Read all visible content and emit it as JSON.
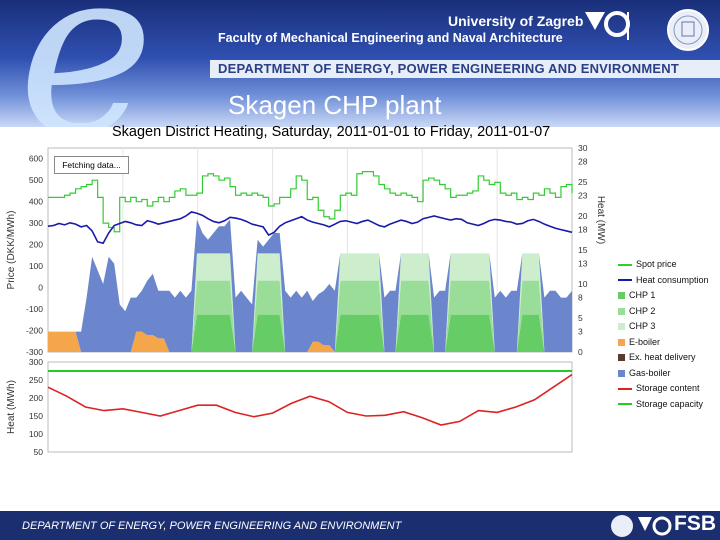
{
  "header": {
    "university": "University of Zagreb",
    "faculty": "Faculty of Mechanical Engineering and Naval Architecture",
    "department": "DEPARTMENT OF ENERGY, POWER ENGINEERING AND ENVIRONMENT",
    "slide_title": "Skagen CHP plant"
  },
  "footer": {
    "department": "DEPARTMENT OF ENERGY, POWER ENGINEERING AND ENVIRONMENT",
    "logo_text": "FSB"
  },
  "status": {
    "fetching": "Fetching data..."
  },
  "colors": {
    "spot_price": "#33cc33",
    "heat_consumption": "#1a1aaa",
    "chp1": "#66cc66",
    "chp2": "#99dd99",
    "chp3": "#cceecc",
    "eboiler": "#f5a64a",
    "ext_heat": "#5a3a2a",
    "gas_boiler": "#6b86cc",
    "storage_content": "#dd2222",
    "storage_capacity": "#22cc22",
    "header_dark": "#1a2f7a",
    "footer": "#1b2f70"
  },
  "chart_data": [
    {
      "type": "area",
      "title": "Skagen District Heating, Saturday, 2011-01-01 to Friday, 2011-01-07",
      "ylabel_left": "Price (DKK/MWh)",
      "ylabel_right": "Heat (MW)",
      "left_ticks": [
        "600",
        "500",
        "400",
        "300",
        "200",
        "100",
        "0",
        "-100",
        "-200",
        "-300"
      ],
      "right_ticks": [
        "30",
        "28",
        "25",
        "23",
        "20",
        "18",
        "15",
        "13",
        "10",
        "8",
        "5",
        "3",
        "0"
      ],
      "ylim_left": [
        -300,
        650
      ],
      "ylim_right": [
        0,
        30
      ],
      "x_days": 7,
      "x_step_hours": 2,
      "legend": [
        {
          "name": "Spot price",
          "color_key": "spot_price",
          "kind": "line"
        },
        {
          "name": "Heat consumption",
          "color_key": "heat_consumption",
          "kind": "line"
        },
        {
          "name": "CHP 1",
          "color_key": "chp1",
          "kind": "box"
        },
        {
          "name": "CHP 2",
          "color_key": "chp2",
          "kind": "box"
        },
        {
          "name": "CHP 3",
          "color_key": "chp3",
          "kind": "box"
        },
        {
          "name": "E-boiler",
          "color_key": "eboiler",
          "kind": "box"
        },
        {
          "name": "Ex. heat delivery",
          "color_key": "ext_heat",
          "kind": "box"
        },
        {
          "name": "Gas-boiler",
          "color_key": "gas_boiler",
          "kind": "box"
        }
      ],
      "series": [
        {
          "name": "Spot price",
          "unit": "DKK/MWh",
          "values": [
            420,
            420,
            420,
            430,
            440,
            460,
            470,
            480,
            500,
            420,
            300,
            280,
            260,
            420,
            400,
            420,
            400,
            410,
            380,
            400,
            420,
            400,
            420,
            450,
            460,
            430,
            430,
            440,
            520,
            530,
            520,
            500,
            510,
            470,
            430,
            440,
            430,
            440,
            430,
            420,
            380,
            390,
            420,
            420,
            460,
            520,
            500,
            410,
            420,
            360,
            330,
            320,
            360,
            430,
            440,
            430,
            530,
            540,
            540,
            520,
            480,
            460,
            440,
            430,
            440,
            430,
            420,
            400,
            500,
            510,
            500,
            480,
            460,
            420,
            430,
            430,
            440,
            450,
            520,
            500,
            480,
            490,
            440,
            430,
            440,
            410,
            420,
            410,
            440,
            430,
            460,
            440,
            420,
            470,
            480,
            440
          ]
        },
        {
          "name": "Heat consumption",
          "unit": "MW",
          "values": [
            18.5,
            18.6,
            18.9,
            18.7,
            19.0,
            18.8,
            18.4,
            18.6,
            17.8,
            16.2,
            16.0,
            17.5,
            18.6,
            18.9,
            19.2,
            19.0,
            18.7,
            18.6,
            19.3,
            19.1,
            18.8,
            19.0,
            19.2,
            19.4,
            19.6,
            20.0,
            20.6,
            20.4,
            20.1,
            19.6,
            19.2,
            19.0,
            19.3,
            19.8,
            19.7,
            19.5,
            19.2,
            18.8,
            18.6,
            18.4,
            17.2,
            17.6,
            18.5,
            19.0,
            19.3,
            19.6,
            19.9,
            19.4,
            19.1,
            18.9,
            18.7,
            18.4,
            18.8,
            19.2,
            19.3,
            19.1,
            18.9,
            19.2,
            19.4,
            19.0,
            18.6,
            18.4,
            18.8,
            19.1,
            19.4,
            19.2,
            18.9,
            19.1,
            19.6,
            19.8,
            20.0,
            19.8,
            19.6,
            19.4,
            19.6,
            19.5,
            19.0,
            18.8,
            18.6,
            18.9,
            19.3,
            19.5,
            19.4,
            19.2,
            19.1,
            18.8,
            18.9,
            19.3,
            19.5,
            19.2,
            18.8,
            18.5,
            18.2,
            18.0,
            17.8,
            17.6
          ]
        },
        {
          "name": "CHP 1",
          "unit": "MW",
          "values": [
            0,
            0,
            0,
            0,
            0,
            0,
            0,
            0,
            0,
            0,
            0,
            0,
            0,
            0,
            0,
            0,
            0,
            0,
            0,
            0,
            0,
            0,
            0,
            0,
            0,
            0,
            0,
            5.5,
            5.5,
            5.5,
            5.5,
            5.5,
            5.5,
            5.5,
            0,
            0,
            0,
            0,
            5.5,
            5.5,
            5.5,
            5.5,
            5.5,
            0,
            0,
            0,
            0,
            0,
            0,
            0,
            0,
            0,
            0,
            5.5,
            5.5,
            5.5,
            5.5,
            5.5,
            5.5,
            5.5,
            5.5,
            0,
            0,
            0,
            5.5,
            5.5,
            5.5,
            5.5,
            5.5,
            5.5,
            0,
            0,
            0,
            5.5,
            5.5,
            5.5,
            5.5,
            5.5,
            5.5,
            5.5,
            5.5,
            0,
            0,
            0,
            0,
            0,
            5.5,
            5.5,
            5.5,
            5.5,
            0,
            0,
            0,
            0,
            0,
            0
          ]
        },
        {
          "name": "CHP 2",
          "unit": "MW",
          "values": [
            0,
            0,
            0,
            0,
            0,
            0,
            0,
            0,
            0,
            0,
            0,
            0,
            0,
            0,
            0,
            0,
            0,
            0,
            0,
            0,
            0,
            0,
            0,
            0,
            0,
            0,
            0,
            5.0,
            5.0,
            5.0,
            5.0,
            5.0,
            5.0,
            5.0,
            0,
            0,
            0,
            0,
            5.0,
            5.0,
            5.0,
            5.0,
            5.0,
            0,
            0,
            0,
            0,
            0,
            0,
            0,
            0,
            0,
            0,
            5.0,
            5.0,
            5.0,
            5.0,
            5.0,
            5.0,
            5.0,
            5.0,
            0,
            0,
            0,
            5.0,
            5.0,
            5.0,
            5.0,
            5.0,
            5.0,
            0,
            0,
            0,
            5.0,
            5.0,
            5.0,
            5.0,
            5.0,
            5.0,
            5.0,
            5.0,
            0,
            0,
            0,
            0,
            0,
            5.0,
            5.0,
            5.0,
            5.0,
            0,
            0,
            0,
            0,
            0,
            0
          ]
        },
        {
          "name": "CHP 3",
          "unit": "MW",
          "values": [
            0,
            0,
            0,
            0,
            0,
            0,
            0,
            0,
            0,
            0,
            0,
            0,
            0,
            0,
            0,
            0,
            0,
            0,
            0,
            0,
            0,
            0,
            0,
            0,
            0,
            0,
            0,
            4.0,
            4.0,
            4.0,
            4.0,
            4.0,
            4.0,
            4.0,
            0,
            0,
            0,
            0,
            4.0,
            4.0,
            4.0,
            4.0,
            4.0,
            0,
            0,
            0,
            0,
            0,
            0,
            0,
            0,
            0,
            0,
            4.0,
            4.0,
            4.0,
            4.0,
            4.0,
            4.0,
            4.0,
            4.0,
            0,
            0,
            0,
            4.0,
            4.0,
            4.0,
            4.0,
            4.0,
            4.0,
            0,
            0,
            0,
            4.0,
            4.0,
            4.0,
            4.0,
            4.0,
            4.0,
            4.0,
            4.0,
            0,
            0,
            0,
            0,
            0,
            4.0,
            4.0,
            4.0,
            4.0,
            0,
            0,
            0,
            0,
            0,
            0
          ]
        },
        {
          "name": "E-boiler",
          "unit": "MW",
          "values": [
            3,
            3,
            3,
            3,
            3,
            3,
            0,
            0,
            0,
            0,
            0,
            0,
            0,
            0,
            0,
            0,
            3,
            3,
            2.5,
            2.5,
            2,
            2,
            0,
            0,
            0,
            0,
            0,
            0,
            0,
            0,
            0,
            0,
            0,
            0,
            0,
            0,
            0,
            0,
            0,
            0,
            0,
            0,
            0,
            0,
            0,
            0,
            0,
            0,
            1.5,
            1.5,
            1,
            1,
            0,
            0,
            0,
            0,
            0,
            0,
            0,
            0,
            0,
            0,
            0,
            0,
            0,
            0,
            0,
            0,
            0,
            0,
            0,
            0,
            0,
            0,
            0,
            0,
            0,
            0,
            0,
            0,
            0,
            0,
            0,
            0,
            0,
            0,
            0,
            0,
            0,
            0,
            0,
            0,
            0,
            0,
            0,
            0
          ]
        },
        {
          "name": "Ex. heat delivery",
          "unit": "MW",
          "values": [
            0,
            0,
            0,
            0,
            0,
            0,
            0,
            0,
            0,
            0,
            0,
            0,
            0,
            0,
            0,
            0,
            0,
            0,
            0,
            0,
            0,
            0,
            0,
            0,
            0,
            0,
            0,
            0,
            0,
            0,
            0,
            0,
            0,
            0,
            0,
            0,
            0,
            0,
            0,
            0,
            0,
            0,
            0,
            0,
            0,
            0,
            0,
            0,
            0,
            0,
            0,
            0,
            0,
            0,
            0,
            0,
            0,
            0,
            0,
            0,
            0,
            0,
            0,
            0,
            0,
            0,
            0,
            0,
            0,
            0,
            0,
            0,
            0,
            0,
            0,
            0,
            0,
            0,
            0,
            0,
            0,
            0,
            0,
            0,
            0,
            0,
            0,
            0,
            0,
            0,
            0,
            0,
            0,
            0,
            0,
            0
          ]
        },
        {
          "name": "Gas-boiler",
          "unit": "MW",
          "values": [
            0,
            0,
            0,
            0,
            0,
            0,
            3,
            8,
            14,
            12,
            10,
            14,
            13,
            7,
            6,
            8,
            5,
            6,
            8,
            9,
            7,
            7,
            9,
            8,
            9,
            8,
            9,
            5,
            3,
            2,
            3,
            4,
            4,
            5,
            8,
            9,
            8,
            7,
            2,
            1,
            2,
            3,
            3,
            9,
            8,
            9,
            8,
            9,
            6,
            7,
            8,
            9,
            9,
            0,
            0,
            0,
            0,
            0,
            0,
            0,
            0,
            8,
            9,
            9,
            0,
            0,
            0,
            0,
            0,
            0,
            8,
            9,
            9,
            0,
            0,
            0,
            0,
            0,
            0,
            0,
            0,
            8,
            9,
            8,
            9,
            9,
            0,
            0,
            0,
            0,
            8,
            9,
            9,
            8,
            8,
            9
          ]
        }
      ]
    },
    {
      "type": "line",
      "ylabel": "Heat (MWh)",
      "ticks": [
        "300",
        "250",
        "200",
        "150",
        "100",
        "50"
      ],
      "ylim": [
        50,
        300
      ],
      "legend": [
        {
          "name": "Storage content",
          "color_key": "storage_content",
          "kind": "line"
        },
        {
          "name": "Storage capacity",
          "color_key": "storage_capacity",
          "kind": "line"
        }
      ],
      "series": [
        {
          "name": "Storage capacity",
          "unit": "MWh",
          "values": [
            275,
            275
          ]
        },
        {
          "name": "Storage content",
          "unit": "MWh",
          "x_hours": [
            0,
            6,
            12,
            18,
            24,
            30,
            36,
            42,
            48,
            54,
            60,
            66,
            72,
            78,
            84,
            90,
            96,
            102,
            108,
            114,
            120,
            126,
            132,
            138,
            144,
            150,
            156,
            162,
            168
          ],
          "values": [
            230,
            205,
            175,
            165,
            170,
            160,
            150,
            165,
            180,
            180,
            160,
            148,
            158,
            185,
            205,
            190,
            160,
            150,
            152,
            162,
            145,
            125,
            135,
            165,
            160,
            175,
            195,
            230,
            265
          ]
        }
      ]
    }
  ]
}
